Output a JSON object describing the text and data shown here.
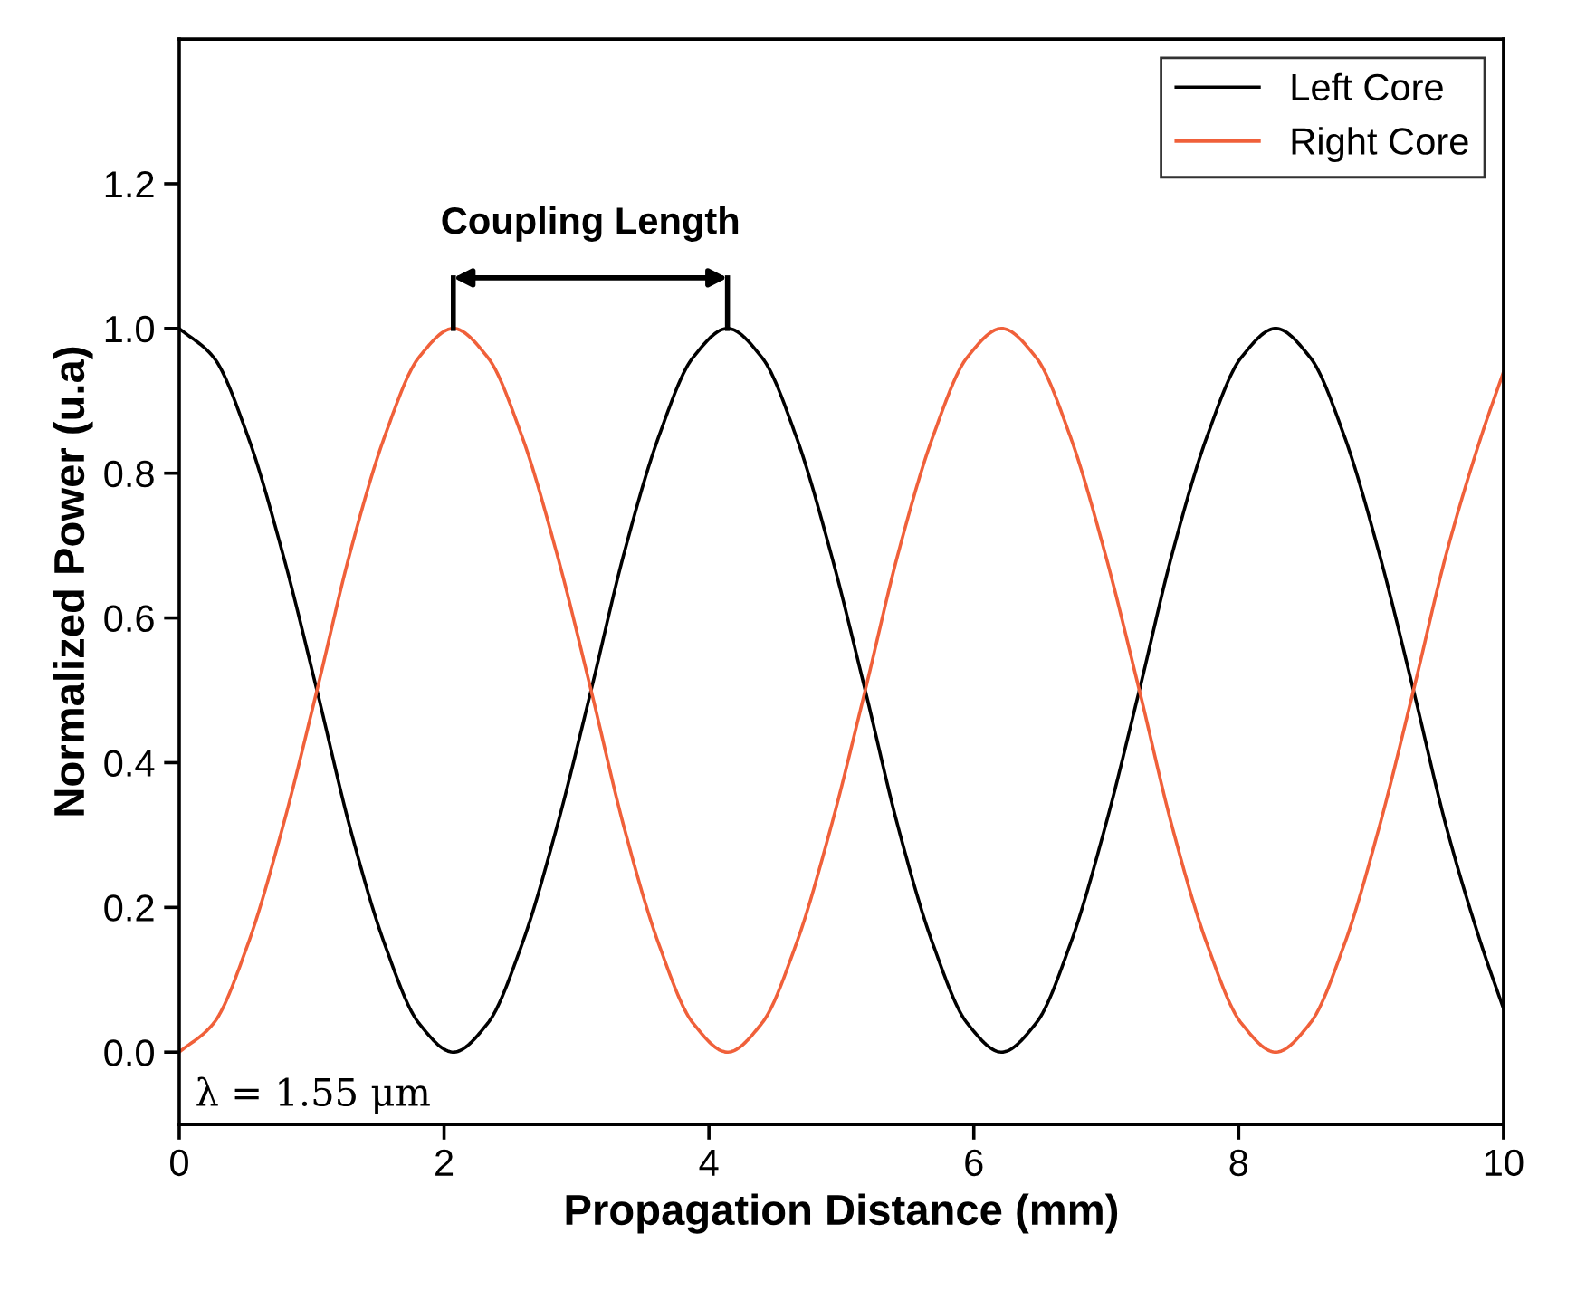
{
  "chart_data": {
    "type": "line",
    "xlabel": "Propagation Distance (mm)",
    "ylabel": "Normalized Power (u.a)",
    "x": [
      0,
      0.26,
      0.52,
      0.78,
      1.04,
      1.29,
      1.55,
      1.81,
      2.07,
      2.33,
      2.59,
      2.85,
      3.11,
      3.36,
      3.62,
      3.88,
      4.14,
      4.4,
      4.66,
      4.92,
      5.18,
      5.43,
      5.69,
      5.95,
      6.21,
      6.47,
      6.73,
      6.99,
      7.25,
      7.5,
      7.76,
      8.02,
      8.28,
      8.54,
      8.8,
      9.06,
      9.32,
      9.57,
      9.83,
      10
    ],
    "series": [
      {
        "name": "Left Core",
        "color": "#000000",
        "values": [
          1,
          0.96,
          0.85,
          0.69,
          0.5,
          0.31,
          0.15,
          0.04,
          0,
          0.04,
          0.15,
          0.31,
          0.5,
          0.69,
          0.85,
          0.96,
          1,
          0.96,
          0.85,
          0.69,
          0.5,
          0.31,
          0.15,
          0.04,
          0,
          0.04,
          0.15,
          0.31,
          0.5,
          0.69,
          0.85,
          0.96,
          1,
          0.96,
          0.85,
          0.69,
          0.5,
          0.31,
          0.15,
          0.06
        ]
      },
      {
        "name": "Right Core",
        "color": "#f0603a",
        "values": [
          0,
          0.04,
          0.15,
          0.31,
          0.5,
          0.69,
          0.85,
          0.96,
          1,
          0.96,
          0.85,
          0.69,
          0.5,
          0.31,
          0.15,
          0.04,
          0,
          0.04,
          0.15,
          0.31,
          0.5,
          0.69,
          0.85,
          0.96,
          1,
          0.96,
          0.85,
          0.69,
          0.5,
          0.31,
          0.15,
          0.04,
          0,
          0.04,
          0.15,
          0.31,
          0.5,
          0.69,
          0.85,
          0.94
        ]
      }
    ],
    "xlim": [
      0,
      10
    ],
    "ylim": [
      -0.1,
      1.4
    ],
    "xticks": [
      0,
      2,
      4,
      6,
      8,
      10
    ],
    "yticks": [
      {
        "value": 0,
        "label": "0.0"
      },
      {
        "value": 0.2,
        "label": "0.2"
      },
      {
        "value": 0.4,
        "label": "0.4"
      },
      {
        "value": 0.6,
        "label": "0.6"
      },
      {
        "value": 0.8,
        "label": "0.8"
      },
      {
        "value": 1,
        "label": "1.0"
      },
      {
        "value": 1.2,
        "label": "1.2"
      }
    ],
    "annotations": [
      {
        "text": "Coupling Length",
        "x": 2.07,
        "y": 1
      },
      "λ = 1.55 μm"
    ],
    "legend": "top right",
    "grid": false,
    "marker": "none",
    "line_style": "solid"
  }
}
